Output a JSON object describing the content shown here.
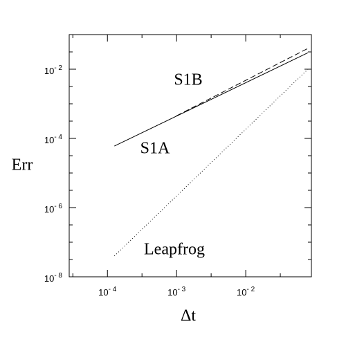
{
  "chart_data": {
    "type": "line",
    "scale": "log",
    "xlabel": "Δt",
    "ylabel": "Err",
    "xlim": [
      2.8e-05,
      0.089
    ],
    "ylim": [
      1e-08,
      0.1
    ],
    "xticks": [
      {
        "value": 0.0001,
        "label": "10",
        "exponent": "- 4"
      },
      {
        "value": 0.001,
        "label": "10",
        "exponent": "- 3"
      },
      {
        "value": 0.01,
        "label": "10",
        "exponent": "- 2"
      }
    ],
    "yticks": [
      {
        "value": 1e-08,
        "label": "10",
        "exponent": "- 8"
      },
      {
        "value": 1e-06,
        "label": "10",
        "exponent": "- 6"
      },
      {
        "value": 0.0001,
        "label": "10",
        "exponent": "- 4"
      },
      {
        "value": 0.01,
        "label": "10",
        "exponent": "- 2"
      }
    ],
    "xminorticks": [
      3.16e-05,
      0.000316,
      0.00316,
      0.0316
    ],
    "yminorticks": [
      3.16e-08,
      1e-07,
      3.16e-07,
      3.16e-06,
      1e-05,
      3.16e-05,
      0.000316,
      0.001,
      0.00316,
      0.0316
    ],
    "series": [
      {
        "name": "S1A",
        "color": "#000000",
        "dash": "solid",
        "x": [
          0.000126,
          0.0794
        ],
        "values": [
          6e-05,
          0.03
        ]
      },
      {
        "name": "S1B",
        "color": "#000000",
        "dash": "dashed",
        "x": [
          0.001,
          0.0794
        ],
        "values": [
          0.00045,
          0.04
        ]
      },
      {
        "name": "Leapfrog",
        "color": "#000000",
        "dash": "dotted",
        "x": [
          0.000126,
          0.0794
        ],
        "values": [
          4e-08,
          0.01
        ]
      }
    ]
  }
}
